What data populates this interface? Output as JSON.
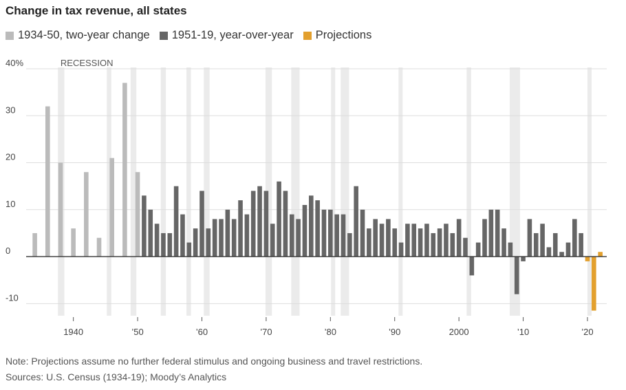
{
  "title": "Change in tax revenue, all states",
  "legend": [
    {
      "label": "1934-50, two-year change",
      "color": "#bbbbbb"
    },
    {
      "label": "1951-19, year-over-year",
      "color": "#666666"
    },
    {
      "label": "Projections",
      "color": "#e3a02e"
    }
  ],
  "recession_label": "RECESSION",
  "note": "Note: Projections assume no further federal stimulus and ongoing business and travel restrictions.",
  "sources": "Sources: U.S. Census (1934-19); Moody’s Analytics",
  "chart_data": {
    "type": "bar",
    "title": "Change in tax revenue, all states",
    "xlabel": "",
    "ylabel": "",
    "ylim": [
      -12,
      40
    ],
    "yticks": [
      40,
      30,
      20,
      10,
      0,
      -10
    ],
    "ytick_labels": [
      "40%",
      "30",
      "20",
      "10",
      "0",
      "-10"
    ],
    "xticks": [
      1940,
      1950,
      1960,
      1970,
      1980,
      1990,
      2000,
      2010,
      2020
    ],
    "xtick_labels": [
      "1940",
      "’50",
      "’60",
      "’70",
      "’80",
      "’90",
      "2000",
      "’10",
      "’20"
    ],
    "recessions": [
      [
        1937.6,
        1938.6
      ],
      [
        1945.2,
        1945.9
      ],
      [
        1948.9,
        1949.8
      ],
      [
        1953.6,
        1954.4
      ],
      [
        1957.6,
        1958.3
      ],
      [
        1960.3,
        1961.2
      ],
      [
        1969.9,
        1970.9
      ],
      [
        1973.9,
        1975.2
      ],
      [
        1980.1,
        1980.6
      ],
      [
        1981.6,
        1982.9
      ],
      [
        1990.6,
        1991.2
      ],
      [
        2001.2,
        2001.9
      ],
      [
        2007.9,
        2009.5
      ],
      [
        2020.0,
        2020.5
      ]
    ],
    "series": [
      {
        "name": "1934-50, two-year change",
        "color": "#bbbbbb",
        "x": [
          1934,
          1936,
          1938,
          1940,
          1942,
          1944,
          1946,
          1948,
          1950
        ],
        "values": [
          5,
          32,
          20,
          6,
          18,
          4,
          21,
          37,
          18
        ]
      },
      {
        "name": "1951-19, year-over-year",
        "color": "#666666",
        "x": [
          1951,
          1952,
          1953,
          1954,
          1955,
          1956,
          1957,
          1958,
          1959,
          1960,
          1961,
          1962,
          1963,
          1964,
          1965,
          1966,
          1967,
          1968,
          1969,
          1970,
          1971,
          1972,
          1973,
          1974,
          1975,
          1976,
          1977,
          1978,
          1979,
          1980,
          1981,
          1982,
          1983,
          1984,
          1985,
          1986,
          1987,
          1988,
          1989,
          1990,
          1991,
          1992,
          1993,
          1994,
          1995,
          1996,
          1997,
          1998,
          1999,
          2000,
          2001,
          2002,
          2003,
          2004,
          2005,
          2006,
          2007,
          2008,
          2009,
          2010,
          2011,
          2012,
          2013,
          2014,
          2015,
          2016,
          2017,
          2018,
          2019
        ],
        "values": [
          13,
          10,
          7,
          5,
          5,
          15,
          9,
          3,
          6,
          14,
          6,
          8,
          8,
          10,
          8,
          12,
          9,
          14,
          15,
          14,
          7,
          16,
          14,
          9,
          8,
          11,
          13,
          12,
          10,
          10,
          9,
          9,
          5,
          15,
          10,
          6,
          8,
          7,
          8,
          6,
          3,
          7,
          7,
          6,
          7,
          5,
          6,
          7,
          5,
          8,
          4,
          -4,
          3,
          8,
          10,
          10,
          6,
          3,
          -8,
          -1,
          8,
          5,
          7,
          2,
          5,
          1,
          3,
          8,
          5
        ]
      },
      {
        "name": "Projections",
        "color": "#e3a02e",
        "x": [
          2020,
          2021,
          2022
        ],
        "values": [
          -1,
          -11.5,
          1
        ]
      }
    ]
  }
}
